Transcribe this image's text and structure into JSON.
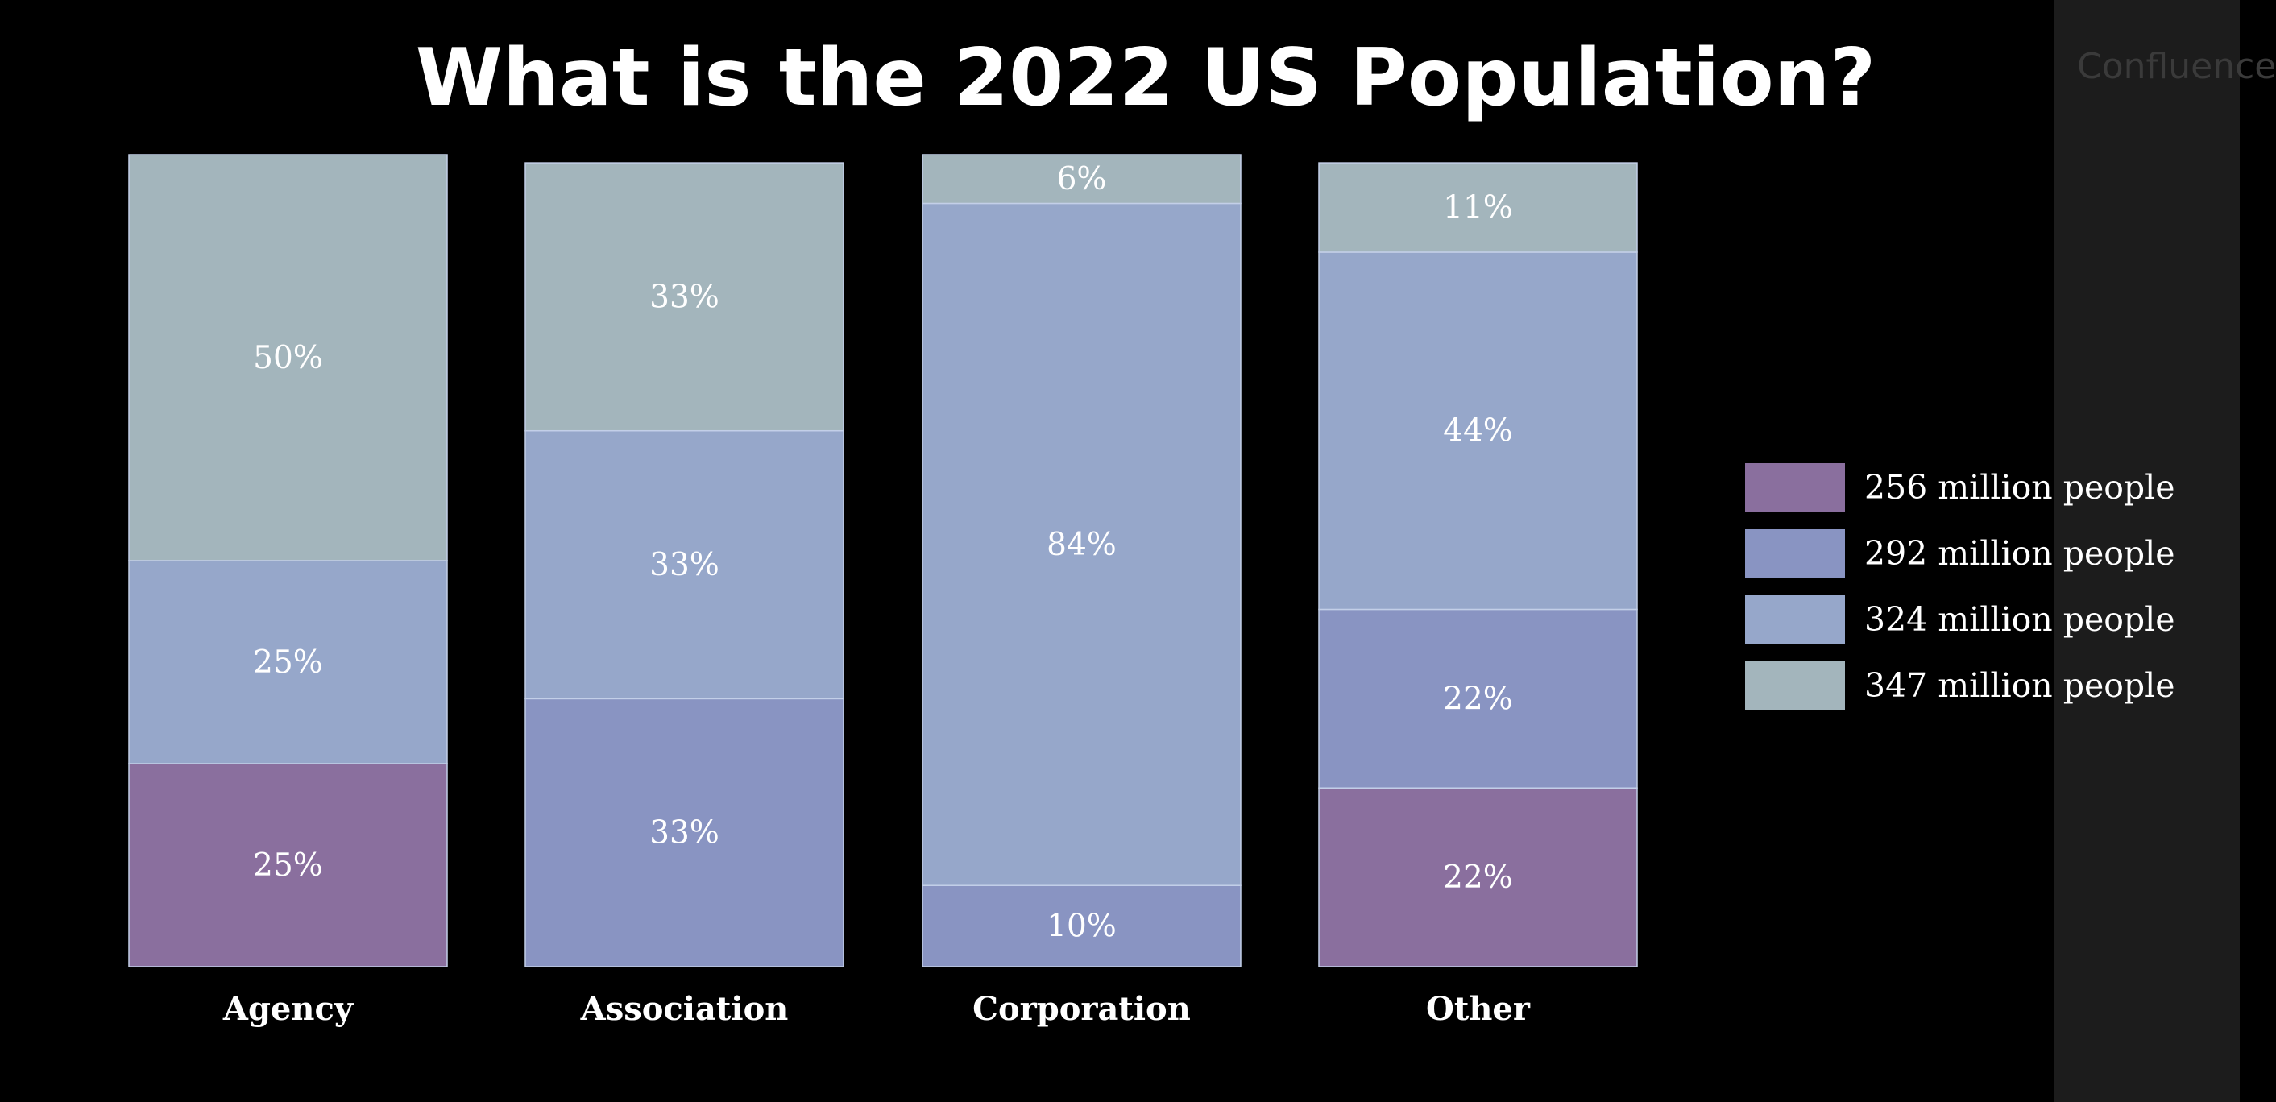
{
  "logo": {
    "icon": "confluence-logo-icon",
    "text": "Confluence"
  },
  "chart_data": {
    "type": "bar",
    "stacked": true,
    "percent": true,
    "title": "What is the 2022 US Population?",
    "categories": [
      "Agency",
      "Association",
      "Corporation",
      "Other"
    ],
    "series": [
      {
        "name": "256 million people",
        "color": "#8a6f9e",
        "values": [
          25,
          0,
          0,
          22
        ],
        "labels": [
          "25%",
          "",
          "",
          "22%"
        ]
      },
      {
        "name": "292 million people",
        "color": "#8994c2",
        "values": [
          0,
          33,
          10,
          22
        ],
        "labels": [
          "",
          "33%",
          "10%",
          "22%"
        ]
      },
      {
        "name": "324 million people",
        "color": "#96a7ca",
        "values": [
          25,
          33,
          84,
          44
        ],
        "labels": [
          "25%",
          "33%",
          "84%",
          "44%"
        ]
      },
      {
        "name": "347 million people",
        "color": "#a3b5bc",
        "values": [
          50,
          33,
          6,
          11
        ],
        "labels": [
          "50%",
          "33%",
          "6%",
          "11%"
        ]
      }
    ],
    "ylim": [
      0,
      100
    ],
    "legend": "right",
    "grid": false
  }
}
